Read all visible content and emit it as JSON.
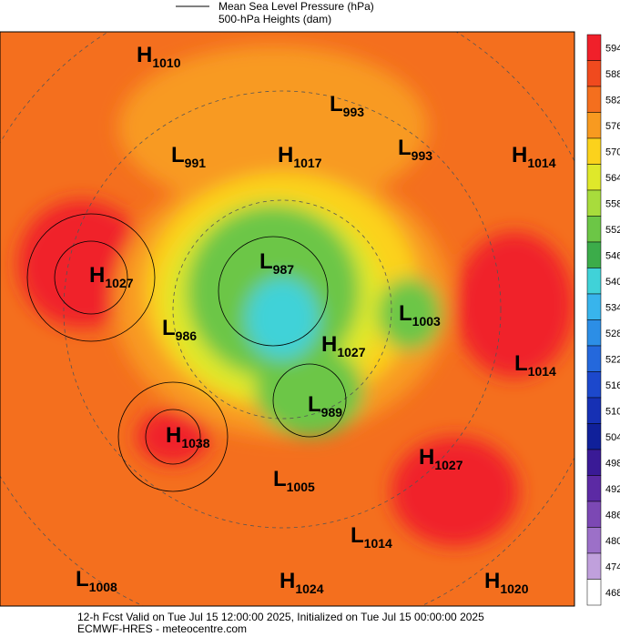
{
  "header": {
    "legend": [
      "Mean Sea Level Pressure (hPa)",
      "500-hPa Heights (dam)"
    ]
  },
  "centers": [
    {
      "type": "H",
      "value": "1010"
    },
    {
      "type": "L",
      "value": "993"
    },
    {
      "type": "L",
      "value": "991"
    },
    {
      "type": "H",
      "value": "1017"
    },
    {
      "type": "L",
      "value": "993"
    },
    {
      "type": "H",
      "value": "1014"
    },
    {
      "type": "H",
      "value": "1027"
    },
    {
      "type": "L",
      "value": "987"
    },
    {
      "type": "L",
      "value": "1003"
    },
    {
      "type": "L",
      "value": "986"
    },
    {
      "type": "H",
      "value": "1027"
    },
    {
      "type": "L",
      "value": "1014"
    },
    {
      "type": "L",
      "value": "989"
    },
    {
      "type": "H",
      "value": "1038"
    },
    {
      "type": "H",
      "value": "1027"
    },
    {
      "type": "L",
      "value": "1005"
    },
    {
      "type": "L",
      "value": "1014"
    },
    {
      "type": "L",
      "value": "1008"
    },
    {
      "type": "H",
      "value": "1024"
    },
    {
      "type": "H",
      "value": "1020"
    }
  ],
  "colorbar": [
    {
      "label": "594",
      "color": "#f0202a"
    },
    {
      "label": "588",
      "color": "#f04a1e"
    },
    {
      "label": "582",
      "color": "#f46f1e"
    },
    {
      "label": "576",
      "color": "#f89a20"
    },
    {
      "label": "570",
      "color": "#fbd21c"
    },
    {
      "label": "564",
      "color": "#dfe82a"
    },
    {
      "label": "558",
      "color": "#a8dc3c"
    },
    {
      "label": "552",
      "color": "#6cc646"
    },
    {
      "label": "546",
      "color": "#3cac4a"
    },
    {
      "label": "540",
      "color": "#40d2d8"
    },
    {
      "label": "534",
      "color": "#38b4ec"
    },
    {
      "label": "528",
      "color": "#2c8ee6"
    },
    {
      "label": "522",
      "color": "#2468dc"
    },
    {
      "label": "516",
      "color": "#1c48cc"
    },
    {
      "label": "510",
      "color": "#1630b4"
    },
    {
      "label": "504",
      "color": "#10209a"
    },
    {
      "label": "498",
      "color": "#3a1a96"
    },
    {
      "label": "492",
      "color": "#5c2aa4"
    },
    {
      "label": "486",
      "color": "#7c48b4"
    },
    {
      "label": "480",
      "color": "#9c70c8"
    },
    {
      "label": "474",
      "color": "#c0a0dc"
    },
    {
      "label": "468",
      "color": "#ffffff"
    }
  ],
  "footer": [
    "12-h Fcst Valid on Tue Jul 15 12:00:00 2025, Initialized on Tue Jul 15 00:00:00 2025",
    "ECMWF-HRES  - meteocentre.com"
  ]
}
